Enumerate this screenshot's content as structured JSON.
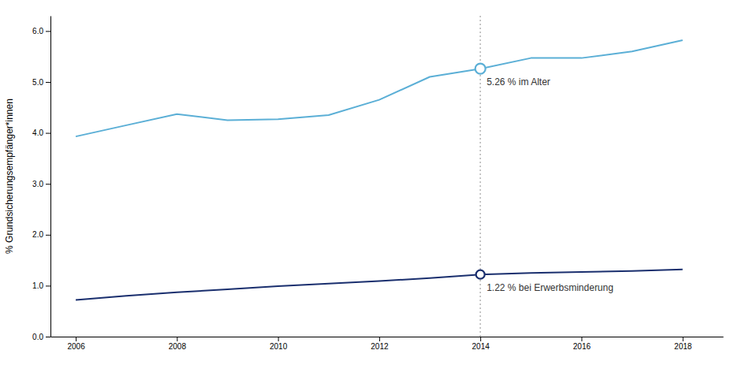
{
  "chart_data": {
    "type": "line",
    "ylabel": "% Grundsicherungsempfänger*innen",
    "x": [
      2006,
      2007,
      2008,
      2009,
      2010,
      2011,
      2012,
      2013,
      2014,
      2015,
      2016,
      2017,
      2018
    ],
    "series": [
      {
        "color": "#5bafd6",
        "values": [
          3.93,
          4.15,
          4.37,
          4.25,
          4.27,
          4.35,
          4.65,
          5.1,
          5.26,
          5.47,
          5.47,
          5.6,
          5.82
        ]
      },
      {
        "color": "#1a2f6e",
        "values": [
          0.72,
          0.8,
          0.87,
          0.93,
          0.99,
          1.04,
          1.09,
          1.15,
          1.22,
          1.25,
          1.27,
          1.29,
          1.32
        ]
      }
    ],
    "annotations": [
      {
        "x": 2014,
        "y": 5.26,
        "text": "5.26 % im Alter"
      },
      {
        "x": 2014,
        "y": 1.22,
        "text": "1.22 % bei Erwerbsminderung"
      }
    ],
    "xlim": [
      2005.5,
      2018.8
    ],
    "xticks": [
      2006,
      2008,
      2010,
      2012,
      2014,
      2016,
      2018
    ],
    "ylim": [
      0.0,
      6.3
    ],
    "yticks": [
      {
        "value": 0.0,
        "label": "0.0"
      },
      {
        "value": 1.0,
        "label": "1.0"
      },
      {
        "value": 2.0,
        "label": "2.0"
      },
      {
        "value": 3.0,
        "label": "3.0"
      },
      {
        "value": 4.0,
        "label": "4.0"
      },
      {
        "value": 5.0,
        "label": "5.0"
      },
      {
        "value": 6.0,
        "label": "6.0"
      }
    ],
    "grid": false
  }
}
